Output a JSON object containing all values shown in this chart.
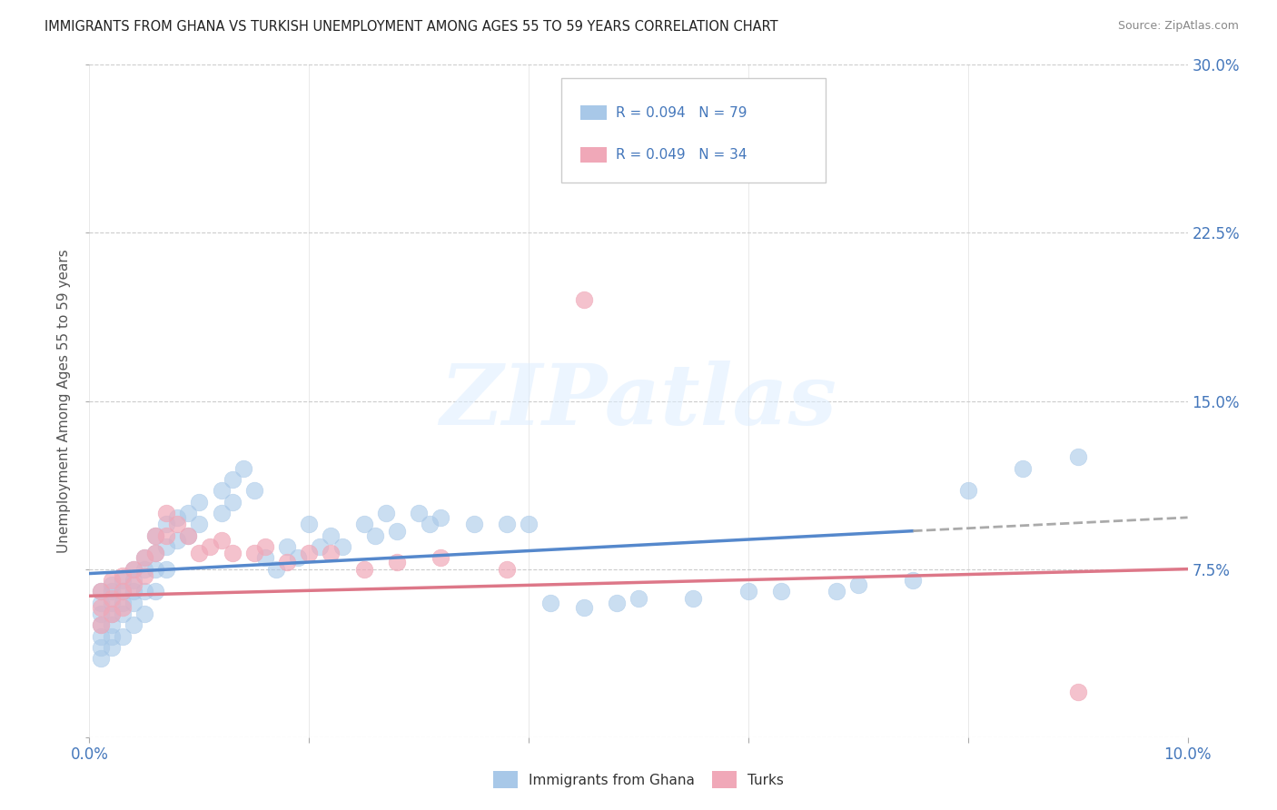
{
  "title": "IMMIGRANTS FROM GHANA VS TURKISH UNEMPLOYMENT AMONG AGES 55 TO 59 YEARS CORRELATION CHART",
  "source": "Source: ZipAtlas.com",
  "ylabel": "Unemployment Among Ages 55 to 59 years",
  "xlim": [
    0.0,
    0.1
  ],
  "ylim": [
    0.0,
    0.3
  ],
  "xtick_positions": [
    0.0,
    0.02,
    0.04,
    0.06,
    0.08,
    0.1
  ],
  "ytick_positions": [
    0.0,
    0.075,
    0.15,
    0.225,
    0.3
  ],
  "yticklabels_right": [
    "",
    "7.5%",
    "15.0%",
    "22.5%",
    "30.0%"
  ],
  "legend_label1": "Immigrants from Ghana",
  "legend_label2": "Turks",
  "color_blue": "#a8c8e8",
  "color_pink": "#f0a8b8",
  "color_blue_line": "#5588cc",
  "color_pink_line": "#dd7788",
  "color_blue_text": "#4477bb",
  "color_gray_dash": "#aaaaaa",
  "watermark_text": "ZIPatlas",
  "ghana_x": [
    0.001,
    0.001,
    0.001,
    0.001,
    0.001,
    0.001,
    0.001,
    0.002,
    0.002,
    0.002,
    0.002,
    0.002,
    0.002,
    0.002,
    0.003,
    0.003,
    0.003,
    0.003,
    0.003,
    0.004,
    0.004,
    0.004,
    0.004,
    0.004,
    0.005,
    0.005,
    0.005,
    0.005,
    0.006,
    0.006,
    0.006,
    0.006,
    0.007,
    0.007,
    0.007,
    0.008,
    0.008,
    0.009,
    0.009,
    0.01,
    0.01,
    0.012,
    0.012,
    0.013,
    0.013,
    0.014,
    0.015,
    0.016,
    0.017,
    0.018,
    0.019,
    0.02,
    0.021,
    0.022,
    0.023,
    0.025,
    0.026,
    0.027,
    0.028,
    0.03,
    0.031,
    0.032,
    0.035,
    0.038,
    0.04,
    0.042,
    0.045,
    0.048,
    0.05,
    0.055,
    0.06,
    0.063,
    0.068,
    0.07,
    0.075,
    0.08,
    0.085,
    0.09
  ],
  "ghana_y": [
    0.065,
    0.06,
    0.055,
    0.05,
    0.045,
    0.04,
    0.035,
    0.068,
    0.065,
    0.06,
    0.055,
    0.05,
    0.045,
    0.04,
    0.07,
    0.065,
    0.06,
    0.055,
    0.045,
    0.075,
    0.07,
    0.065,
    0.06,
    0.05,
    0.08,
    0.075,
    0.065,
    0.055,
    0.09,
    0.082,
    0.075,
    0.065,
    0.095,
    0.085,
    0.075,
    0.098,
    0.088,
    0.1,
    0.09,
    0.105,
    0.095,
    0.11,
    0.1,
    0.115,
    0.105,
    0.12,
    0.11,
    0.08,
    0.075,
    0.085,
    0.08,
    0.095,
    0.085,
    0.09,
    0.085,
    0.095,
    0.09,
    0.1,
    0.092,
    0.1,
    0.095,
    0.098,
    0.095,
    0.095,
    0.095,
    0.06,
    0.058,
    0.06,
    0.062,
    0.062,
    0.065,
    0.065,
    0.065,
    0.068,
    0.07,
    0.11,
    0.12,
    0.125
  ],
  "turks_x": [
    0.001,
    0.001,
    0.001,
    0.002,
    0.002,
    0.002,
    0.003,
    0.003,
    0.003,
    0.004,
    0.004,
    0.005,
    0.005,
    0.006,
    0.006,
    0.007,
    0.007,
    0.008,
    0.009,
    0.01,
    0.011,
    0.012,
    0.013,
    0.015,
    0.016,
    0.018,
    0.02,
    0.022,
    0.025,
    0.028,
    0.032,
    0.038,
    0.045,
    0.09
  ],
  "turks_y": [
    0.065,
    0.058,
    0.05,
    0.07,
    0.062,
    0.055,
    0.072,
    0.065,
    0.058,
    0.075,
    0.068,
    0.08,
    0.072,
    0.09,
    0.082,
    0.1,
    0.09,
    0.095,
    0.09,
    0.082,
    0.085,
    0.088,
    0.082,
    0.082,
    0.085,
    0.078,
    0.082,
    0.082,
    0.075,
    0.078,
    0.08,
    0.075,
    0.195,
    0.02
  ],
  "ghana_trend_x0": 0.0,
  "ghana_trend_x1": 0.075,
  "ghana_trend_xdash1": 0.1,
  "ghana_trend_y0": 0.073,
  "ghana_trend_y1": 0.092,
  "ghana_trend_ydash1": 0.098,
  "turks_trend_x0": 0.0,
  "turks_trend_x1": 0.1,
  "turks_trend_y0": 0.063,
  "turks_trend_y1": 0.075
}
